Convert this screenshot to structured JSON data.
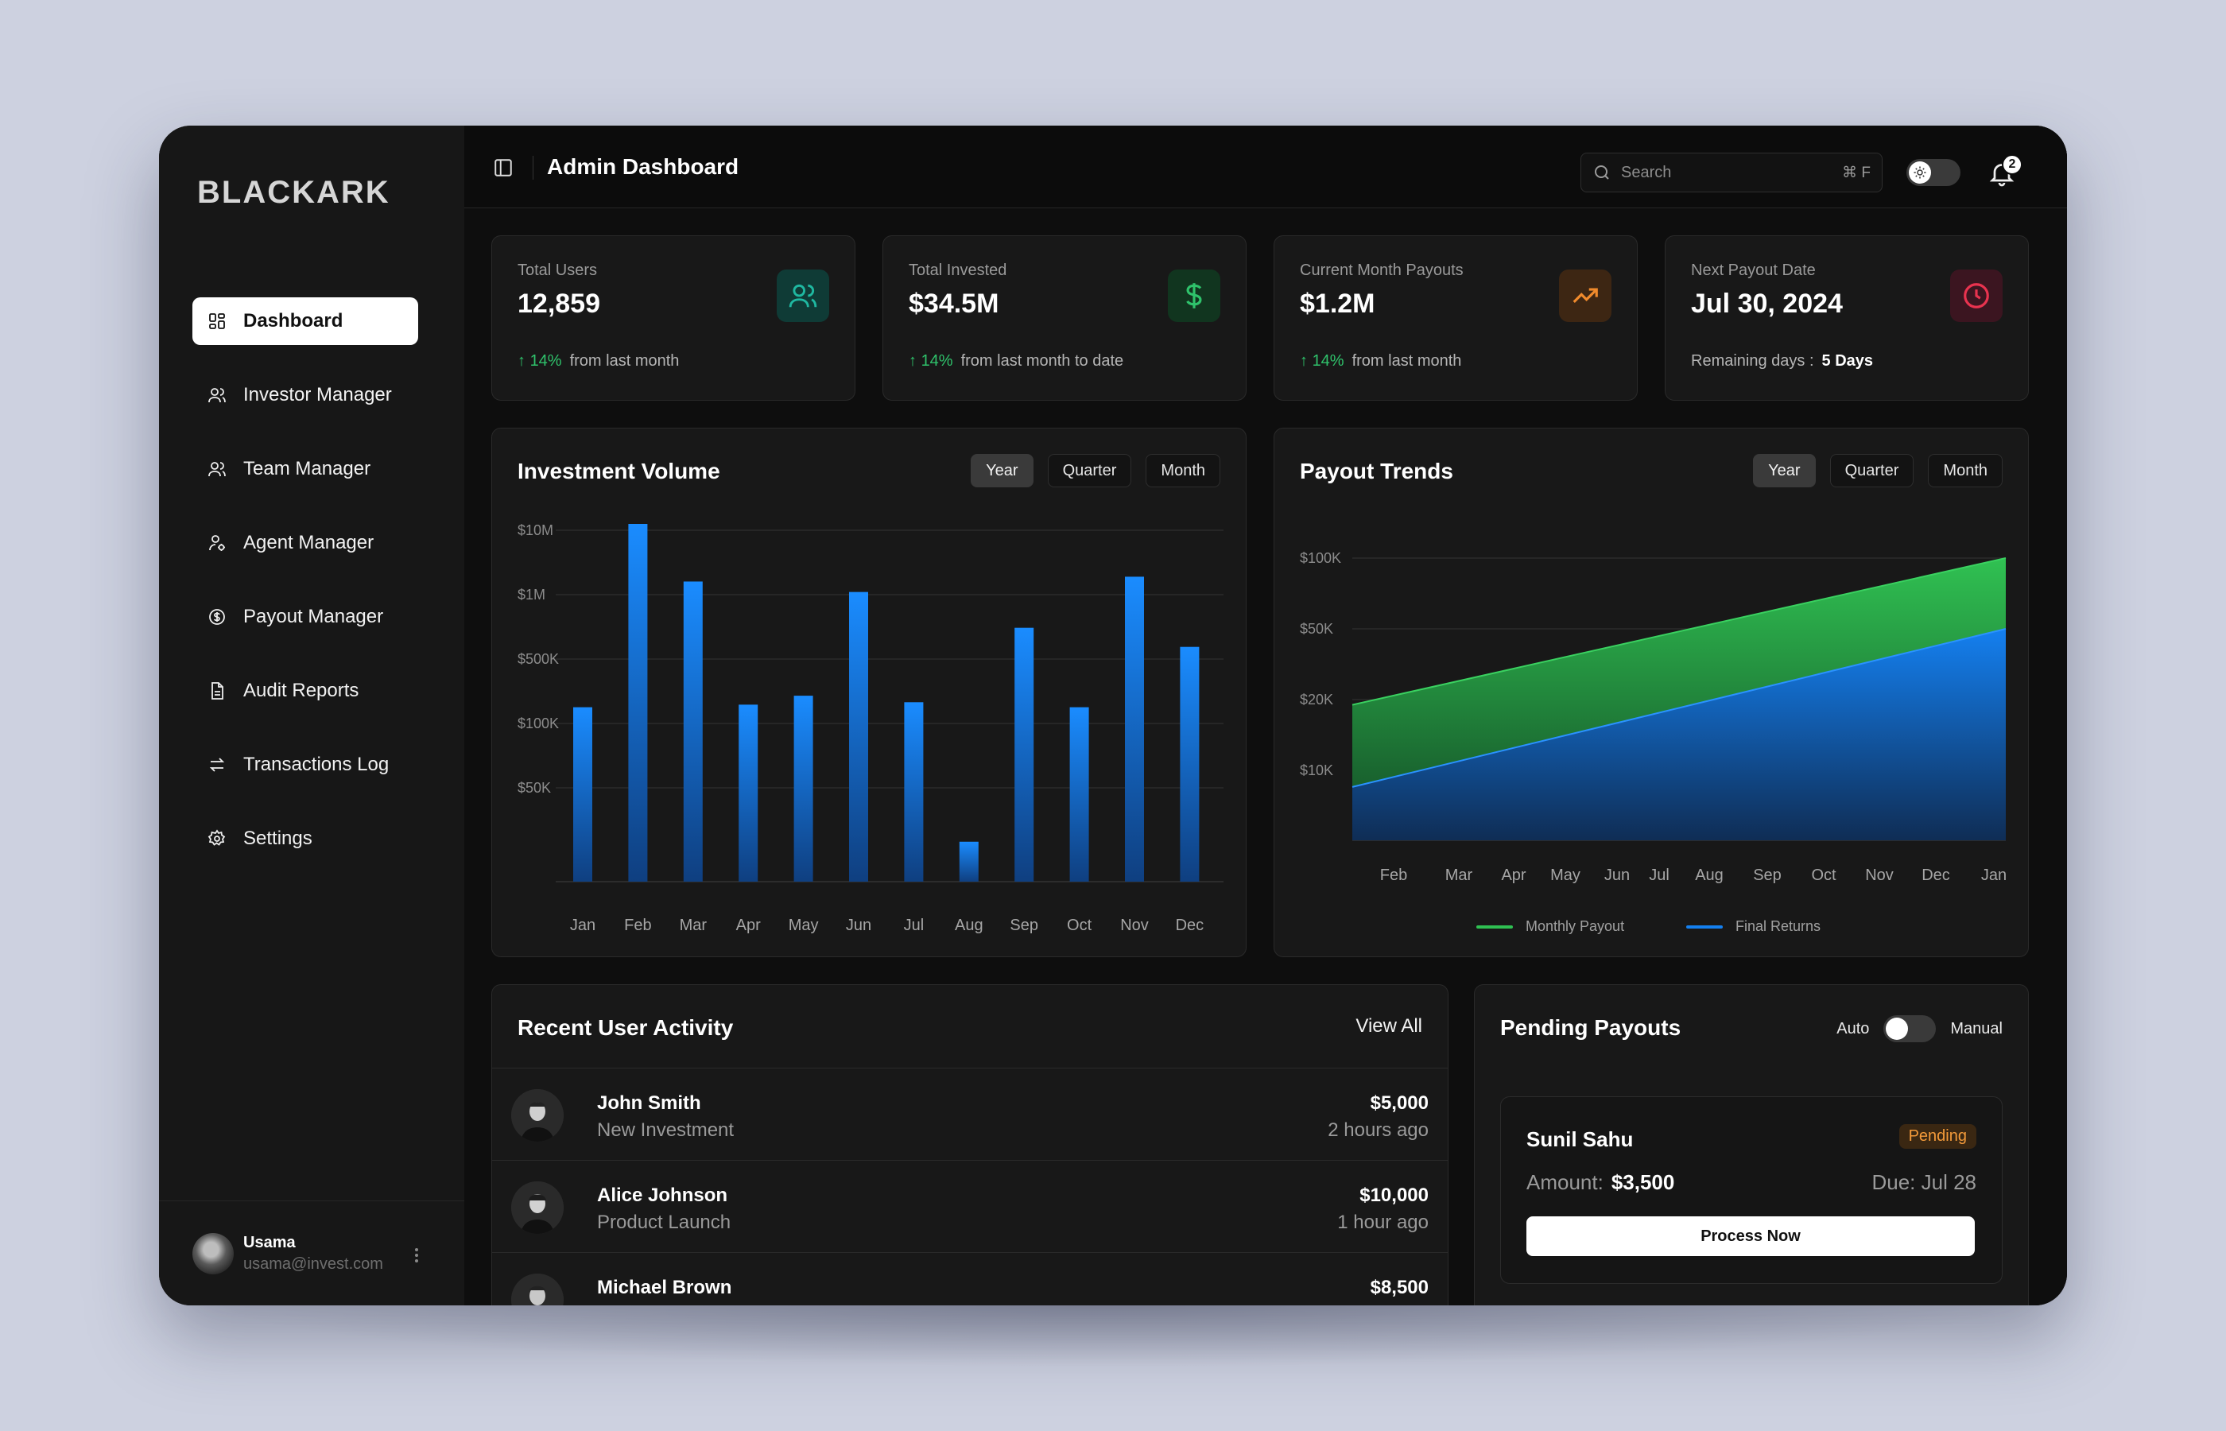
{
  "app": {
    "logo": "BLACKARK"
  },
  "sidebar": {
    "items": [
      {
        "label": "Dashboard",
        "icon": "dashboard-icon",
        "active": true
      },
      {
        "label": "Investor Manager",
        "icon": "users-icon"
      },
      {
        "label": "Team Manager",
        "icon": "users-icon"
      },
      {
        "label": "Agent Manager",
        "icon": "agent-icon"
      },
      {
        "label": "Payout Manager",
        "icon": "dollar-circle-icon"
      },
      {
        "label": "Audit Reports",
        "icon": "document-icon"
      },
      {
        "label": "Transactions Log",
        "icon": "arrows-icon"
      },
      {
        "label": "Settings",
        "icon": "gear-icon"
      }
    ],
    "user": {
      "name": "Usama",
      "email": "usama@invest.com"
    }
  },
  "header": {
    "title": "Admin Dashboard",
    "search_placeholder": "Search",
    "search_shortcut": "⌘ F",
    "notification_count": "2"
  },
  "stats": [
    {
      "label": "Total Users",
      "value": "12,859",
      "change": "14%",
      "note": "from last month",
      "color": "#1fb8a1",
      "icon": "users-icon"
    },
    {
      "label": "Total Invested",
      "value": "$34.5M",
      "change": "14%",
      "note": "from last month to date",
      "color": "#2fc26b",
      "icon": "dollar-icon"
    },
    {
      "label": "Current Month Payouts",
      "value": "$1.2M",
      "change": "14%",
      "note": "from last month",
      "color": "#f08a2c",
      "icon": "trending-up-icon"
    },
    {
      "label": "Next Payout Date",
      "value": "Jul 30, 2024",
      "remaining_label": "Remaining days :",
      "remaining_value": "5 Days",
      "color": "#e8334f",
      "icon": "clock-icon"
    }
  ],
  "filters": [
    "Year",
    "Quarter",
    "Month"
  ],
  "investment_card": {
    "title": "Investment Volume"
  },
  "payout_card": {
    "title": "Payout Trends"
  },
  "chart_data": [
    {
      "type": "bar",
      "title": "Investment Volume",
      "y_ticks": [
        "$50K",
        "$100K",
        "$500K",
        "$1M",
        "$10M"
      ],
      "categories": [
        "Jan",
        "Feb",
        "Mar",
        "Apr",
        "May",
        "Jun",
        "Jul",
        "Aug",
        "Sep",
        "Oct",
        "Nov",
        "Dec"
      ],
      "values": [
        150000,
        14000000,
        1600000,
        160000,
        200000,
        1100000,
        170000,
        28000,
        700000,
        150000,
        1900000,
        570000
      ],
      "scale": "log",
      "color": "#1a8cff"
    },
    {
      "type": "area",
      "title": "Payout Trends",
      "y_ticks": [
        "$10K",
        "$20K",
        "$50K",
        "$100K"
      ],
      "categories": [
        "Feb",
        "Mar",
        "Apr",
        "May",
        "Jun",
        "Jul",
        "Aug",
        "Sep",
        "Oct",
        "Nov",
        "Dec",
        "Jan"
      ],
      "series": [
        {
          "name": "Monthly Payout",
          "start": 19000,
          "end": 100000,
          "color": "#2fc052"
        },
        {
          "name": "Final Returns",
          "start": 8500,
          "end": 50000,
          "color": "#1480f0"
        }
      ]
    }
  ],
  "activity": {
    "title": "Recent User Activity",
    "view_all": "View All",
    "rows": [
      {
        "name": "John Smith",
        "action": "New Investment",
        "amount": "$5,000",
        "time": "2 hours ago"
      },
      {
        "name": "Alice Johnson",
        "action": "Product Launch",
        "amount": "$10,000",
        "time": "1 hour ago"
      },
      {
        "name": "Michael Brown",
        "action": "",
        "amount": "$8,500",
        "time": ""
      }
    ]
  },
  "payouts": {
    "title": "Pending Payouts",
    "mode_auto": "Auto",
    "mode_manual": "Manual",
    "item": {
      "name": "Sunil Sahu",
      "status": "Pending",
      "amount_label": "Amount:",
      "amount": "$3,500",
      "due": "Due: Jul 28",
      "button": "Process Now"
    }
  }
}
